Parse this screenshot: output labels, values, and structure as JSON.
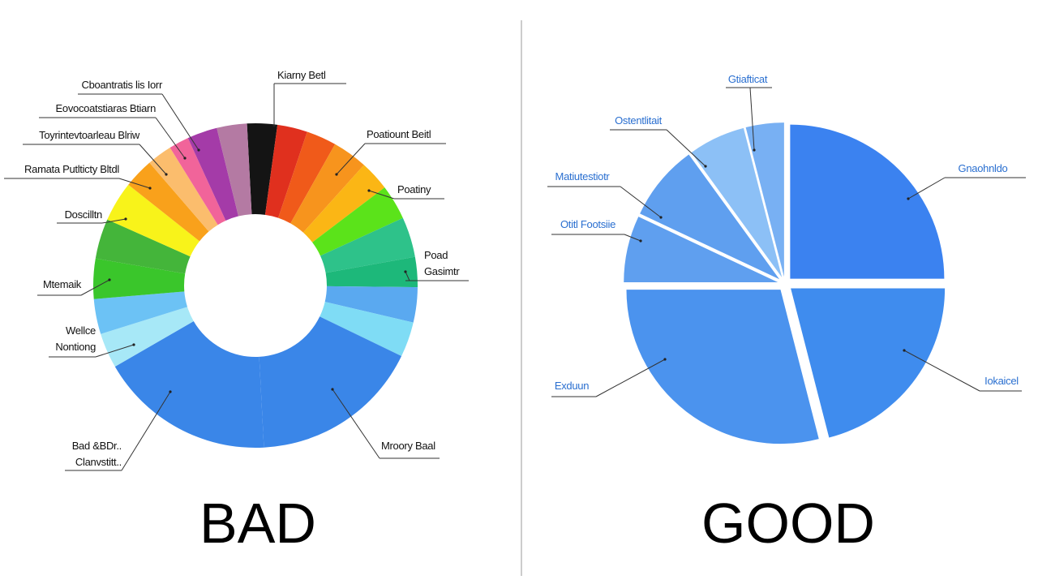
{
  "chart_data": [
    {
      "type": "donut",
      "title": "BAD",
      "categories": [
        "Kiarny Betl",
        null,
        null,
        "Poatiount Beitl",
        "Poatiny",
        null,
        null,
        "Poad\nGasimtr",
        null,
        null,
        "Mroory Baal",
        "Bad &BDr..\nClanvstitt..",
        "Wellce\nNontiong",
        null,
        "Mtemaik",
        null,
        "Doscilltn",
        "Ramata Putlticty Bltdl",
        "Toyrintevtoarleau Blriw",
        "Eovocoatstiaras Btiarn",
        "Cboantratis lis Iorr",
        null
      ],
      "values": [
        3,
        3,
        3,
        3.5,
        3,
        3.5,
        4,
        3,
        3.5,
        3.5,
        17,
        17.5,
        3.5,
        3.5,
        4,
        4,
        4,
        3,
        2.5,
        2,
        3,
        3
      ],
      "colors": [
        "#141414",
        "#e0301e",
        "#f05a1a",
        "#f7941d",
        "#fbb615",
        "#5be31a",
        "#2ec28a",
        "#1db87a",
        "#5aa9f0",
        "#7fdcf5",
        "#3a86e8",
        "#3a86e8",
        "#a7e8f7",
        "#6cc2f5",
        "#3ac62b",
        "#44b53a",
        "#f8f31a",
        "#f9a11b",
        "#fbbd6d",
        "#f1649a",
        "#a43ba8",
        "#b47aa3"
      ]
    },
    {
      "type": "pie",
      "title": "GOOD",
      "exploded": true,
      "categories": [
        "Gnaohnldo",
        "Iokaicel",
        "Exduun",
        "Otitl Footsiie",
        "Matiutestiotr",
        "Ostentlitait",
        "Gtiafticat"
      ],
      "values": [
        25,
        21,
        29,
        7,
        8,
        6,
        4
      ],
      "colors": [
        "#3b82f0",
        "#3f8cee",
        "#4b93ee",
        "#5f9fef",
        "#5f9fef",
        "#8cc0f6",
        "#78b0f3"
      ]
    }
  ]
}
